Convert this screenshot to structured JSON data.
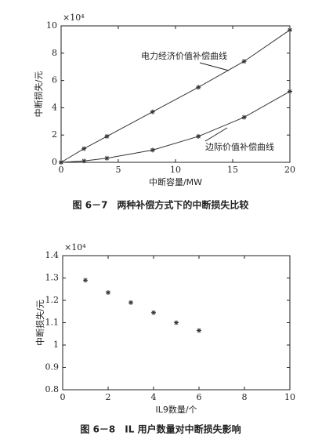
{
  "chart_data": [
    {
      "type": "line",
      "caption": "图 6－7　两种补偿方式下的中断损失比较",
      "x_label": "中断容量/MW",
      "y_label": "中断损失/元",
      "multiplier": "×10⁴",
      "xlim": [
        0,
        20
      ],
      "xticks": [
        0,
        5,
        10,
        15,
        20
      ],
      "ylim": [
        0,
        10
      ],
      "yticks": [
        0,
        2,
        4,
        6,
        8,
        10
      ],
      "x": [
        0,
        2,
        4,
        8,
        12,
        16,
        20
      ],
      "series": [
        {
          "name": "电力经济价值补偿曲线",
          "color": "#333333",
          "values": [
            0,
            1.0,
            1.9,
            3.7,
            5.5,
            7.4,
            9.7
          ]
        },
        {
          "name": "边际价值补偿曲线",
          "color": "#333333",
          "values": [
            0,
            0.1,
            0.3,
            0.9,
            1.9,
            3.3,
            5.2
          ]
        }
      ]
    },
    {
      "type": "scatter",
      "caption": "图 6－8　IL 用户数量对中断损失影响",
      "x_label": "IL9数量/个",
      "y_label": "中断损失/元",
      "multiplier": "×10⁴",
      "xlim": [
        0,
        10
      ],
      "xticks": [
        0,
        2,
        4,
        6,
        8,
        10
      ],
      "ylim": [
        0.8,
        1.4
      ],
      "yticks": [
        0.8,
        0.9,
        1,
        1.1,
        1.2,
        1.3,
        1.4
      ],
      "x": [
        1,
        2,
        3,
        4,
        5,
        6
      ],
      "series": [
        {
          "name": null,
          "color": "#333333",
          "values": [
            1.29,
            1.235,
            1.19,
            1.145,
            1.1,
            1.065
          ]
        }
      ]
    }
  ]
}
